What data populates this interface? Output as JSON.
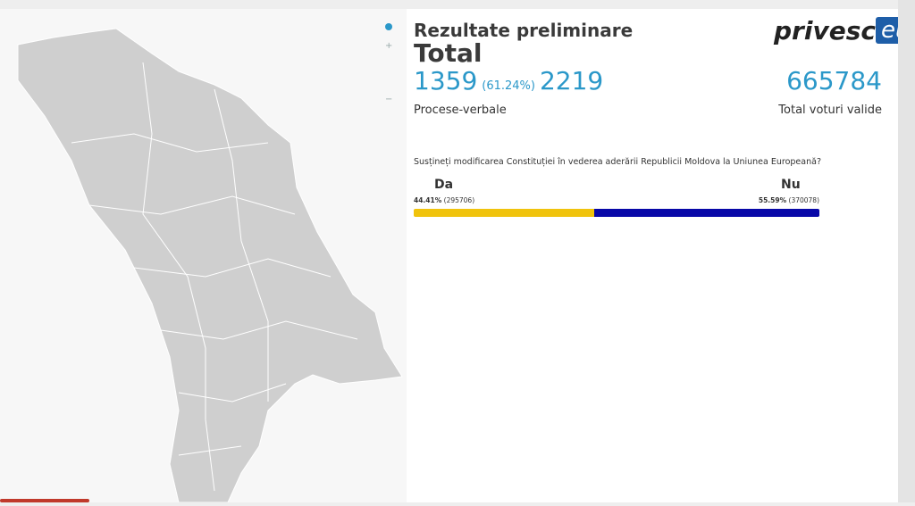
{
  "header": {
    "title": "Rezultate preliminare",
    "subtitle": "Total"
  },
  "logo": {
    "text": "privesc",
    "badge": "eu"
  },
  "protocols": {
    "counted": 1359,
    "percent_label": "(61.24%)",
    "total": 2219,
    "label": "Procese-verbale"
  },
  "votes": {
    "value": 665784,
    "label": "Total voturi valide"
  },
  "question": "Susțineți modificarea Constituției în vederea aderării Republicii Moldova la Uniunea Europeană?",
  "options": [
    {
      "name": "Da",
      "percent": 44.41,
      "percent_label": "44.41%",
      "count_label": "(295706)",
      "color": "#f0c30c"
    },
    {
      "name": "Nu",
      "percent": 55.59,
      "percent_label": "55.59%",
      "count_label": "(370078)",
      "color": "#0808a8"
    }
  ]
}
